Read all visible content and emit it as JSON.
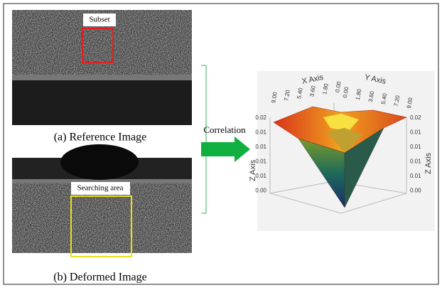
{
  "reference": {
    "label": "Subset",
    "caption": "(a) Reference Image"
  },
  "deformed": {
    "label": "Searching area",
    "caption": "(b) Deformed Image"
  },
  "arrow_label": "Correlation",
  "plot": {
    "x_axis_title": "X Axis",
    "y_axis_title": "Y Axis",
    "z_axis_title_left": "Z Axis",
    "z_axis_title_right": "Z Axis",
    "x_ticks": [
      "9.00",
      "7.20",
      "5.40",
      "3.60",
      "1.80",
      "0.00"
    ],
    "y_ticks": [
      "0.00",
      "1.80",
      "3.60",
      "5.40",
      "7.20",
      "9.00"
    ],
    "z_ticks_left": [
      "0.02",
      "0.01",
      "0.01",
      "0.01",
      "0.01",
      "0.00"
    ],
    "z_ticks_right": [
      "0.02",
      "0.01",
      "0.01",
      "0.01",
      "0.01",
      "0.00"
    ]
  }
}
